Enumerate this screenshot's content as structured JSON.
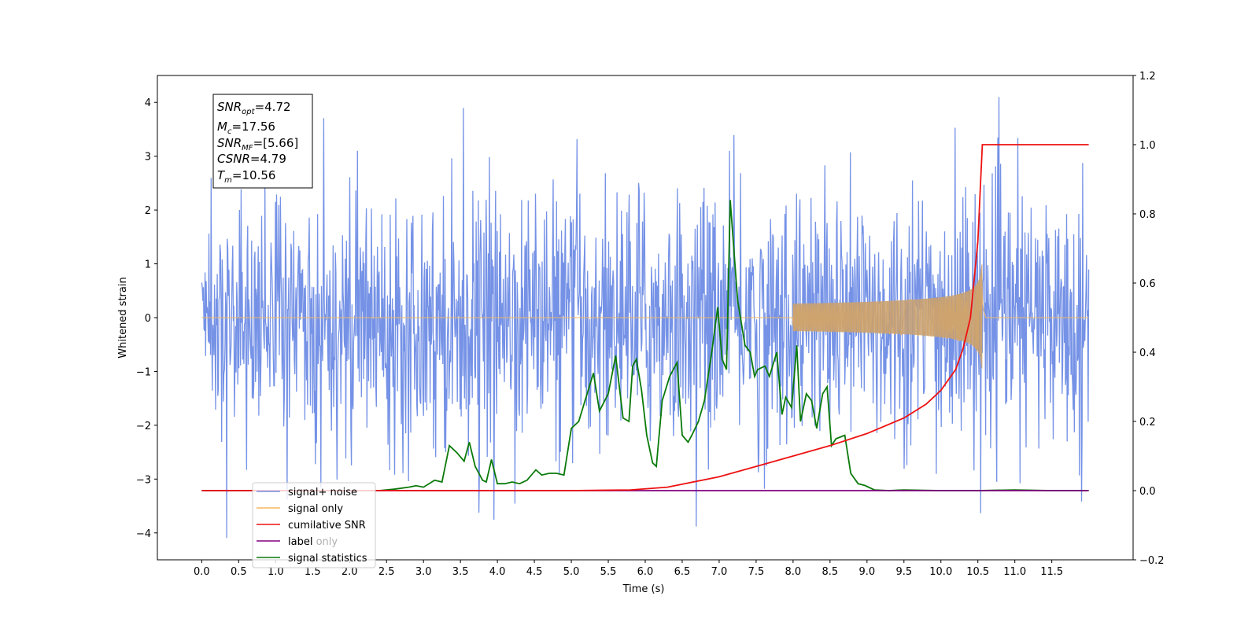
{
  "chart_data": {
    "type": "line",
    "xlabel": "Time (s)",
    "ylabel": "Whitened strain",
    "xlim": [
      -0.6,
      12.6
    ],
    "ylim": [
      -4.5,
      4.5
    ],
    "y2lim": [
      -0.2,
      1.2
    ],
    "x_ticks": [
      "0.0",
      "0.5",
      "1.0",
      "1.5",
      "2.0",
      "2.5",
      "3.0",
      "3.5",
      "4.0",
      "4.5",
      "5.0",
      "5.5",
      "6.0",
      "6.5",
      "7.0",
      "7.5",
      "8.0",
      "8.5",
      "9.0",
      "9.5",
      "10.0",
      "10.5",
      "11.0",
      "11.5"
    ],
    "y_ticks": [
      "4",
      "3",
      "2",
      "1",
      "0",
      "−1",
      "−2",
      "−3",
      "−4"
    ],
    "y2_ticks": [
      "1.2",
      "1.0",
      "0.8",
      "0.6",
      "0.4",
      "0.2",
      "0.0",
      "−0.2"
    ],
    "legend_position": "lower-left",
    "legend": [
      "signal+ noise",
      "signal only",
      "cumilative SNR",
      "label",
      "signal statistics"
    ],
    "legend_hidden_text": "label only",
    "info_box": {
      "snr_opt": {
        "base": "SNR",
        "sub": "opt",
        "value": "=4.72"
      },
      "mc": {
        "base": "M",
        "sub": "c",
        "value": "=17.56"
      },
      "snr_mf": {
        "base": "SNR",
        "sub": "MF",
        "value": "=[5.66]"
      },
      "csnr": {
        "base": "CSNR",
        "value": "=4.79"
      },
      "tm": {
        "base": "T",
        "sub": "m",
        "value": "=10.56"
      }
    },
    "series": [
      {
        "name": "signal+ noise",
        "axis": "left",
        "color": "#7592e6",
        "description": "whitened noise with std ~1.1, peaks near ±4, from 0.0 to 12.0 s"
      },
      {
        "name": "signal only",
        "axis": "left",
        "color": "#f5b85f",
        "description": "chirp signal, amplitude grows until merger at 10.56 s (max ~1.0, min ~-0.95)",
        "t_merge": 10.56,
        "peak_amplitude": 1.0
      },
      {
        "name": "cumilative SNR",
        "axis": "right",
        "color": "#ee1111",
        "x": [
          0.0,
          5.0,
          5.8,
          6.3,
          7.0,
          7.5,
          8.0,
          8.5,
          9.0,
          9.5,
          9.8,
          10.0,
          10.2,
          10.3,
          10.4,
          10.5,
          10.56,
          12.0
        ],
        "values": [
          0.0,
          0.0,
          0.002,
          0.01,
          0.04,
          0.07,
          0.1,
          0.13,
          0.165,
          0.21,
          0.25,
          0.29,
          0.35,
          0.41,
          0.5,
          0.72,
          1.0,
          1.0
        ]
      },
      {
        "name": "label",
        "axis": "right",
        "color": "#800080",
        "x": [
          0.0,
          12.0
        ],
        "values": [
          0.0,
          0.0
        ]
      },
      {
        "name": "signal statistics",
        "axis": "right",
        "color": "#0a7a0a",
        "x": [
          0.0,
          2.4,
          2.6,
          2.8,
          2.9,
          3.0,
          3.15,
          3.25,
          3.35,
          3.45,
          3.55,
          3.62,
          3.7,
          3.8,
          3.85,
          3.92,
          4.0,
          4.1,
          4.2,
          4.3,
          4.4,
          4.52,
          4.6,
          4.7,
          4.8,
          4.9,
          5.0,
          5.1,
          5.2,
          5.3,
          5.38,
          5.5,
          5.6,
          5.7,
          5.78,
          5.83,
          5.88,
          5.95,
          6.02,
          6.1,
          6.15,
          6.23,
          6.33,
          6.43,
          6.5,
          6.58,
          6.63,
          6.72,
          6.8,
          6.9,
          6.98,
          7.04,
          7.1,
          7.15,
          7.25,
          7.35,
          7.42,
          7.48,
          7.52,
          7.62,
          7.68,
          7.78,
          7.85,
          7.9,
          7.98,
          8.05,
          8.1,
          8.18,
          8.25,
          8.32,
          8.4,
          8.46,
          8.52,
          8.58,
          8.7,
          8.78,
          8.88,
          8.97,
          9.1,
          9.3,
          9.5,
          10.0,
          10.5,
          11.0,
          11.5,
          12.0
        ],
        "values": [
          0.0,
          0.0,
          0.004,
          0.01,
          0.014,
          0.01,
          0.03,
          0.025,
          0.13,
          0.11,
          0.085,
          0.14,
          0.07,
          0.03,
          0.025,
          0.09,
          0.02,
          0.02,
          0.025,
          0.02,
          0.03,
          0.06,
          0.045,
          0.05,
          0.05,
          0.045,
          0.18,
          0.2,
          0.27,
          0.34,
          0.23,
          0.28,
          0.39,
          0.21,
          0.2,
          0.36,
          0.38,
          0.29,
          0.16,
          0.08,
          0.07,
          0.26,
          0.33,
          0.37,
          0.16,
          0.14,
          0.16,
          0.2,
          0.26,
          0.4,
          0.53,
          0.38,
          0.35,
          0.84,
          0.55,
          0.42,
          0.4,
          0.33,
          0.35,
          0.36,
          0.33,
          0.4,
          0.22,
          0.27,
          0.24,
          0.42,
          0.2,
          0.28,
          0.26,
          0.18,
          0.28,
          0.3,
          0.13,
          0.15,
          0.16,
          0.05,
          0.02,
          0.015,
          0.002,
          0.0,
          0.002,
          0.0,
          0.0,
          0.002,
          0.0,
          0.0
        ]
      }
    ]
  }
}
